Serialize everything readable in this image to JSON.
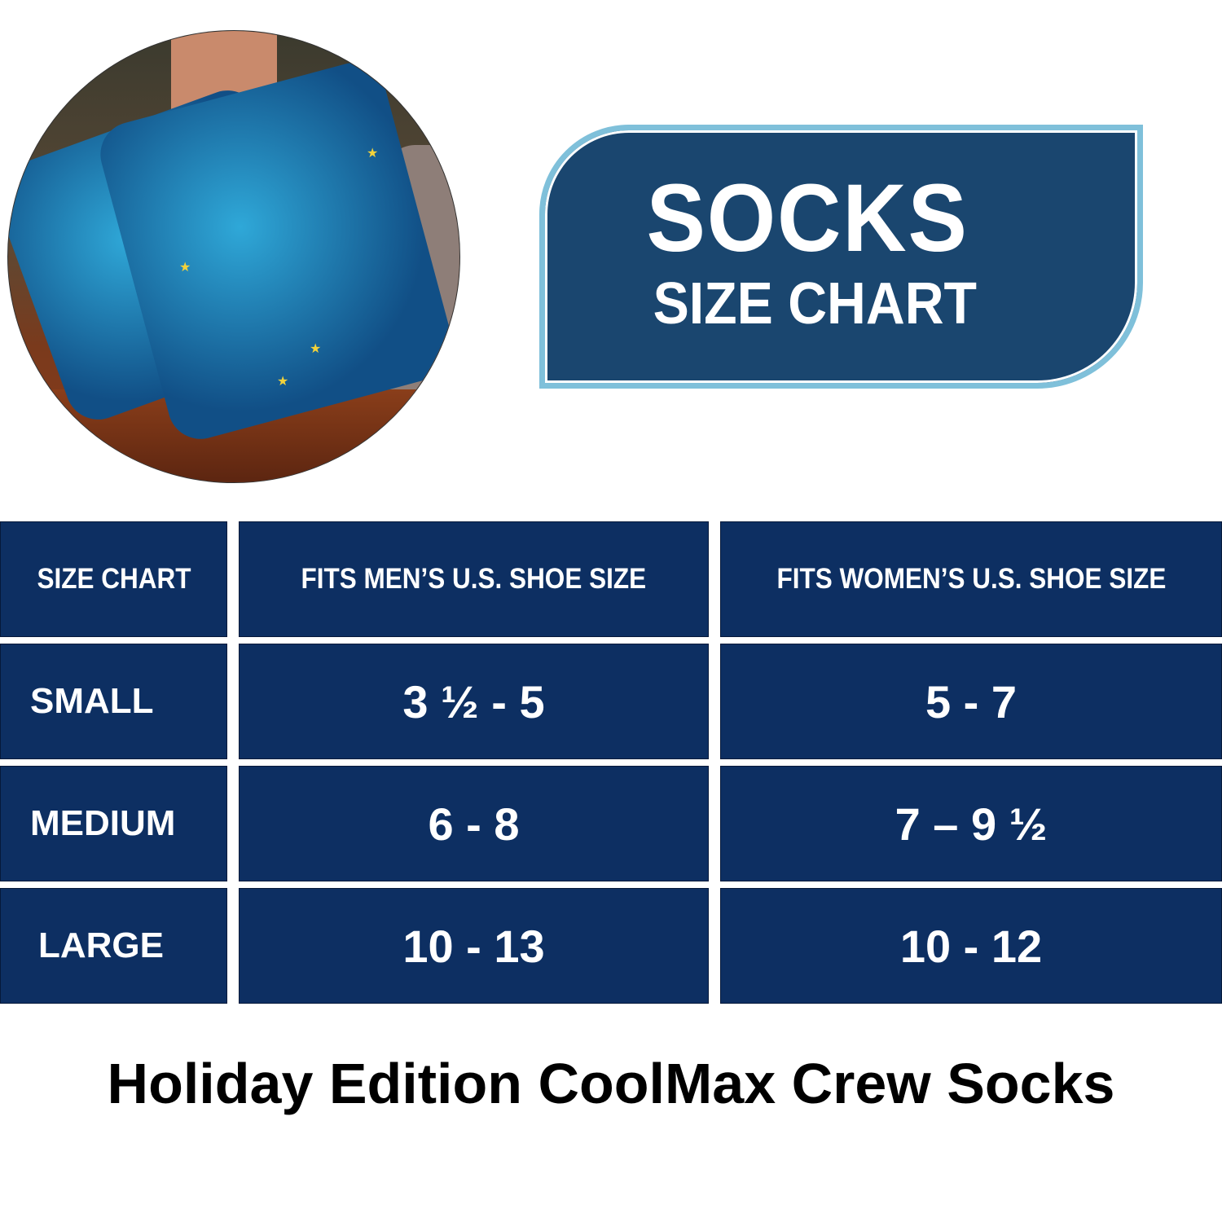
{
  "photo": {
    "alt_icon": "socks-photo"
  },
  "title_box": {
    "title": "SOCKS",
    "subtitle": "SIZE CHART"
  },
  "table": {
    "headers": [
      "SIZE CHART",
      "FITS MEN’S U.S. SHOE SIZE",
      "FITS WOMEN’S U.S. SHOE SIZE"
    ],
    "rows": [
      {
        "size": "SMALL",
        "men": "3 ½ - 5",
        "women": "5 - 7"
      },
      {
        "size": "MEDIUM",
        "men": "6 - 8",
        "women": "7 – 9 ½"
      },
      {
        "size": "LARGE",
        "men": "10 - 13",
        "women": "10 - 12"
      }
    ]
  },
  "footer": {
    "product_name": "Holiday Edition CoolMax Crew Socks"
  },
  "colors": {
    "cell_bg": "#0d2f62",
    "title_bg": "#1a466f",
    "title_border": "#7fc0da"
  }
}
